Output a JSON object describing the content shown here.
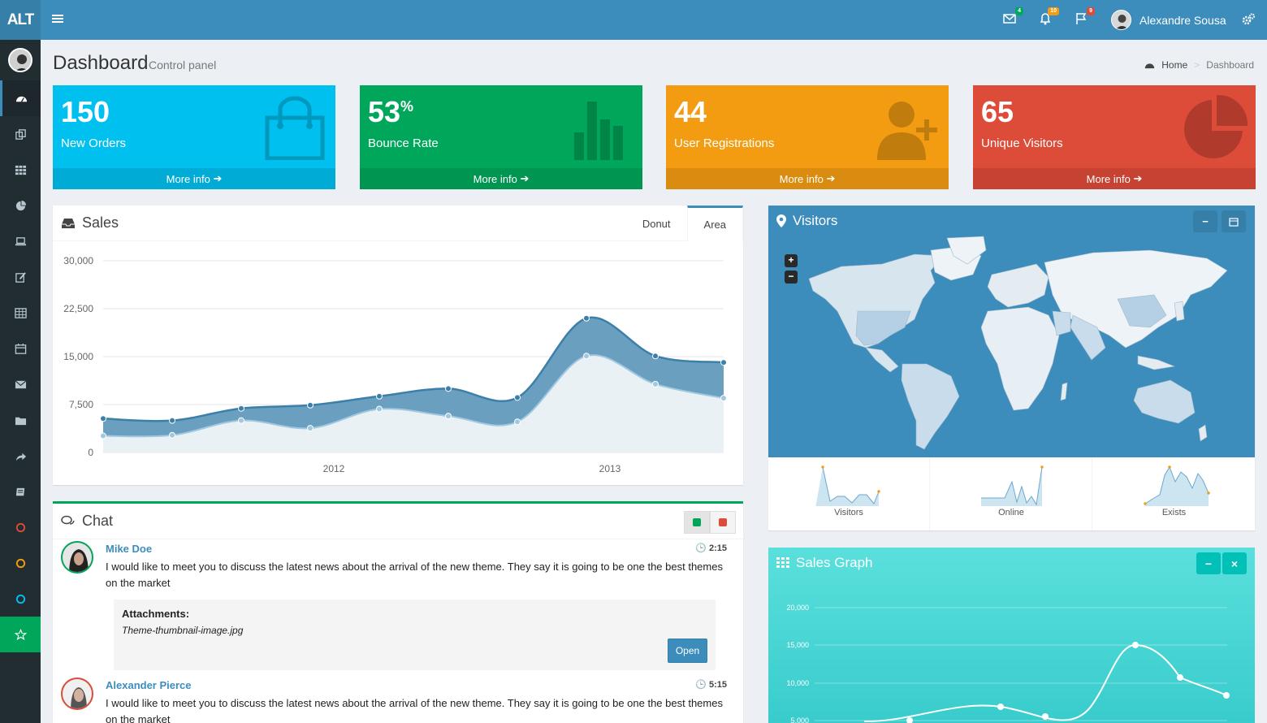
{
  "header": {
    "logo": "ALT",
    "user_name": "Alexandre Sousa",
    "badges": {
      "mail": "4",
      "notif": "10",
      "tasks": "9"
    }
  },
  "page": {
    "title": "Dashboard",
    "subtitle": "Control panel"
  },
  "breadcrumb": {
    "home": "Home",
    "current": "Dashboard"
  },
  "stats": [
    {
      "value": "150",
      "suffix": "",
      "label": "New Orders",
      "more": "More info",
      "color": "#00c0ef"
    },
    {
      "value": "53",
      "suffix": "%",
      "label": "Bounce Rate",
      "more": "More info",
      "color": "#00a65a"
    },
    {
      "value": "44",
      "suffix": "",
      "label": "User Registrations",
      "more": "More info",
      "color": "#f39c12"
    },
    {
      "value": "65",
      "suffix": "",
      "label": "Unique Visitors",
      "more": "More info",
      "color": "#dd4b39"
    }
  ],
  "sales": {
    "title": "Sales",
    "tabs": [
      "Donut",
      "Area"
    ],
    "active_tab": "Area"
  },
  "chart_data": {
    "type": "area",
    "ylim": [
      0,
      30000
    ],
    "yticks": [
      "30,000",
      "22,500",
      "15,000",
      "7,500",
      "0"
    ],
    "xticks": [
      "2012",
      "2013"
    ],
    "series": [
      {
        "values": [
          5300,
          5000,
          6900,
          7400,
          8800,
          10000,
          8600,
          21000,
          15100,
          14100
        ]
      },
      {
        "values": [
          2600,
          2700,
          5000,
          3800,
          6800,
          5700,
          4800,
          15100,
          10700,
          8500
        ]
      }
    ]
  },
  "visitors": {
    "title": "Visitors",
    "sparks": [
      "Visitors",
      "Online",
      "Exists"
    ]
  },
  "sales_graph": {
    "title": "Sales Graph",
    "yticks": [
      "20,000",
      "15,000",
      "10,000",
      "5,000"
    ]
  },
  "chat": {
    "title": "Chat",
    "messages": [
      {
        "name": "Mike Doe",
        "time": "2:15",
        "text": "I would like to meet you to discuss the latest news about the arrival of the new theme. They say it is going to be one the best themes on the market"
      },
      {
        "name": "Alexander Pierce",
        "time": "5:15",
        "text": "I would like to meet you to discuss the latest news about the arrival of the new theme. They say it is going to be one the best themes on the market"
      }
    ],
    "attachment": {
      "heading": "Attachments:",
      "file": "Theme-thumbnail-image.jpg",
      "button": "Open"
    }
  }
}
